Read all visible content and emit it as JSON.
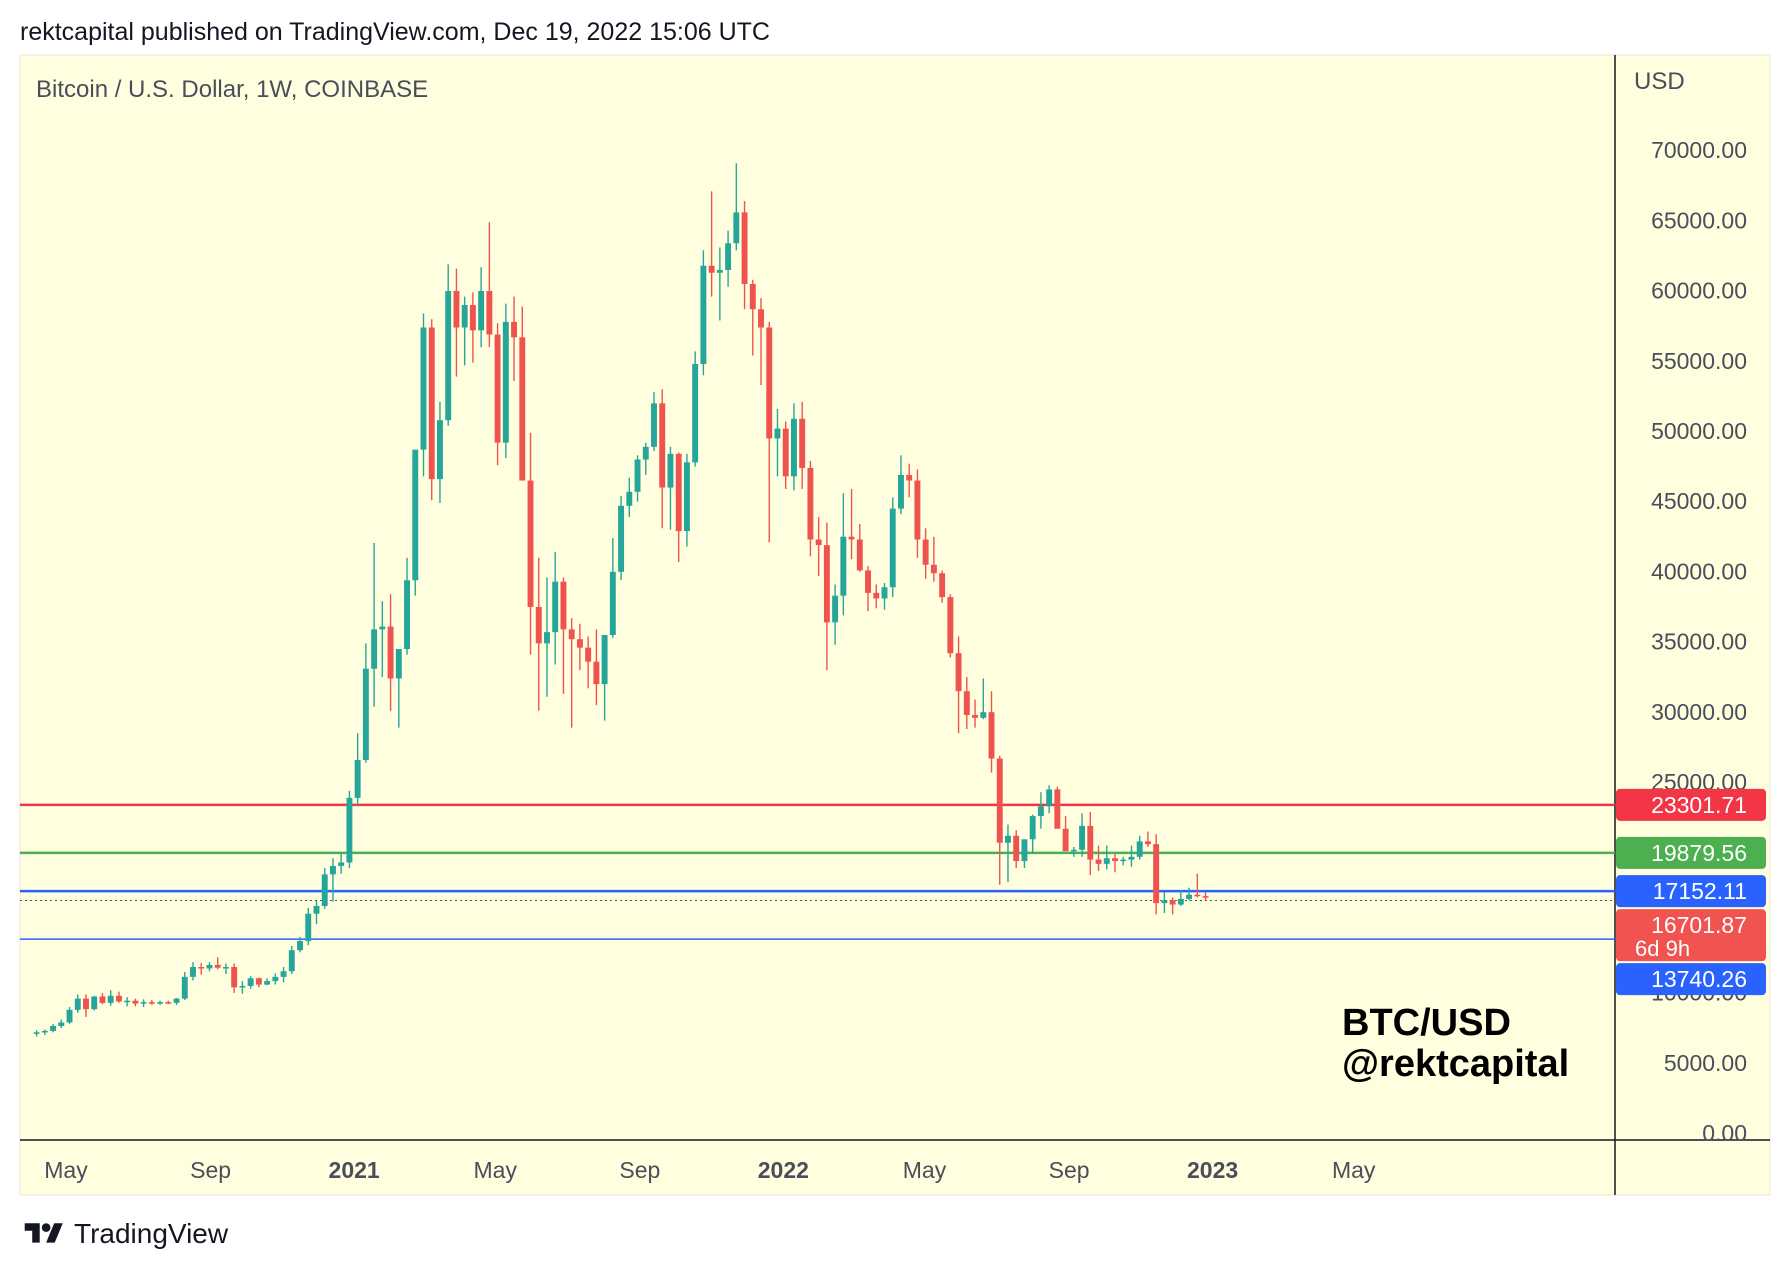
{
  "header": {
    "text": "rektcapital published on TradingView.com, Dec 19, 2022 15:06 UTC"
  },
  "footer": {
    "brand": "TradingView"
  },
  "colors": {
    "background": "#ffffe0",
    "up": "#26a69a",
    "down": "#ef5350",
    "resistance": "#f23645",
    "support_green": "#4caf50",
    "support_blue": "#2962ff",
    "current_price": "#f05350"
  },
  "chart_data": {
    "type": "candlestick",
    "title": "Bitcoin / U.S. Dollar, 1W, COINBASE",
    "watermark": [
      "BTC/USD",
      "@rektcapital"
    ],
    "y_axis": {
      "label": "USD",
      "ticks": [
        "70000.00",
        "65000.00",
        "60000.00",
        "55000.00",
        "50000.00",
        "45000.00",
        "40000.00",
        "35000.00",
        "30000.00",
        "25000.00",
        "10000.00",
        "5000.00",
        "0.00"
      ],
      "tick_values": [
        70000,
        65000,
        60000,
        55000,
        50000,
        45000,
        40000,
        35000,
        30000,
        25000,
        10000,
        5000,
        0
      ],
      "ylim": [
        0,
        80000
      ]
    },
    "x_axis": {
      "ticks": [
        {
          "label": "May",
          "bold": false
        },
        {
          "label": "Sep",
          "bold": false
        },
        {
          "label": "2021",
          "bold": true
        },
        {
          "label": "May",
          "bold": false
        },
        {
          "label": "Sep",
          "bold": false
        },
        {
          "label": "2022",
          "bold": true
        },
        {
          "label": "May",
          "bold": false
        },
        {
          "label": "Sep",
          "bold": false
        },
        {
          "label": "2023",
          "bold": true
        },
        {
          "label": "May",
          "bold": false
        }
      ],
      "tick_dates": [
        "2020-05-01",
        "2020-09-01",
        "2021-01-01",
        "2021-05-01",
        "2021-09-01",
        "2022-01-01",
        "2022-05-01",
        "2022-09-01",
        "2023-01-01",
        "2023-05-01"
      ]
    },
    "horizontal_levels": [
      {
        "label": "23301.71",
        "value": 23301.71,
        "color": "#f23645",
        "style": "solid",
        "text": "#ffffff"
      },
      {
        "label": "19879.56",
        "value": 19879.56,
        "color": "#4caf50",
        "style": "solid",
        "text": "#ffffff"
      },
      {
        "label": "17152.11",
        "value": 17152.11,
        "color": "#2962ff",
        "style": "solid",
        "text": "#ffffff"
      },
      {
        "label": "13740.26",
        "value": 13740.26,
        "color": "#2962ff",
        "style": "solid",
        "text": "#ffffff"
      }
    ],
    "current_price": {
      "label": "16701.87",
      "countdown": "6d 9h",
      "value": 16701.87
    },
    "series_start": "2020-04-06",
    "candles": [
      [
        7000,
        7250,
        6800,
        7100
      ],
      [
        7100,
        7300,
        6900,
        7200
      ],
      [
        7200,
        7700,
        7100,
        7550
      ],
      [
        7550,
        8000,
        7400,
        7800
      ],
      [
        7800,
        8900,
        7700,
        8700
      ],
      [
        8700,
        9800,
        8500,
        9500
      ],
      [
        9500,
        9800,
        8200,
        8750
      ],
      [
        8750,
        9700,
        8650,
        9650
      ],
      [
        9650,
        9900,
        9100,
        9200
      ],
      [
        9200,
        10100,
        9000,
        9700
      ],
      [
        9700,
        10000,
        9200,
        9300
      ],
      [
        9300,
        9600,
        8950,
        9350
      ],
      [
        9350,
        9500,
        8950,
        9150
      ],
      [
        9150,
        9450,
        8900,
        9250
      ],
      [
        9250,
        9400,
        9050,
        9150
      ],
      [
        9150,
        9350,
        9050,
        9250
      ],
      [
        9250,
        9350,
        9100,
        9200
      ],
      [
        9200,
        9550,
        9050,
        9500
      ],
      [
        9500,
        11400,
        9400,
        11050
      ],
      [
        11050,
        12100,
        10800,
        11750
      ],
      [
        11750,
        12050,
        11200,
        11650
      ],
      [
        11650,
        12100,
        11450,
        11900
      ],
      [
        11900,
        12450,
        11600,
        11700
      ],
      [
        11700,
        12000,
        11250,
        11750
      ],
      [
        11750,
        12000,
        9900,
        10300
      ],
      [
        10300,
        10750,
        9850,
        10400
      ],
      [
        10400,
        11100,
        10200,
        10950
      ],
      [
        10950,
        11000,
        10300,
        10500
      ],
      [
        10500,
        10950,
        10450,
        10750
      ],
      [
        10750,
        11300,
        10500,
        11050
      ],
      [
        11050,
        11750,
        10650,
        11450
      ],
      [
        11450,
        13250,
        11250,
        12950
      ],
      [
        12950,
        13900,
        12800,
        13600
      ],
      [
        13600,
        15950,
        13300,
        15550
      ],
      [
        15550,
        16450,
        14800,
        16100
      ],
      [
        16100,
        18800,
        15900,
        18350
      ],
      [
        18350,
        19500,
        16400,
        18950
      ],
      [
        18950,
        19900,
        18400,
        19200
      ],
      [
        19200,
        24300,
        18800,
        23800
      ],
      [
        23800,
        28400,
        23200,
        26500
      ],
      [
        26500,
        34800,
        26300,
        33000
      ],
      [
        33000,
        41950,
        30300,
        35800
      ],
      [
        35800,
        37800,
        32400,
        36000
      ],
      [
        36000,
        38300,
        30000,
        32300
      ],
      [
        32300,
        33800,
        28800,
        34400
      ],
      [
        34400,
        40900,
        34000,
        39300
      ],
      [
        39300,
        48200,
        38200,
        48600
      ],
      [
        48600,
        58300,
        46700,
        57300
      ],
      [
        57300,
        57900,
        45000,
        46500
      ],
      [
        46500,
        52000,
        44800,
        50700
      ],
      [
        50700,
        61800,
        50300,
        59900
      ],
      [
        59900,
        61500,
        53800,
        57300
      ],
      [
        57300,
        59500,
        54600,
        58900
      ],
      [
        58900,
        59800,
        54800,
        57100
      ],
      [
        57100,
        61600,
        55900,
        59900
      ],
      [
        59900,
        64800,
        55900,
        56800
      ],
      [
        56800,
        57600,
        47500,
        49100
      ],
      [
        49100,
        59000,
        48000,
        57700
      ],
      [
        57700,
        59500,
        53500,
        56600
      ],
      [
        56600,
        58800,
        46500,
        46400
      ],
      [
        46400,
        49800,
        34000,
        37400
      ],
      [
        37400,
        40900,
        30000,
        34800
      ],
      [
        34800,
        39500,
        31000,
        35600
      ],
      [
        35600,
        41300,
        33300,
        39200
      ],
      [
        39200,
        39500,
        31200,
        35800
      ],
      [
        35800,
        36600,
        28800,
        35100
      ],
      [
        35100,
        36200,
        32900,
        34500
      ],
      [
        34500,
        35300,
        31600,
        33500
      ],
      [
        33500,
        35800,
        30400,
        31900
      ],
      [
        31900,
        35300,
        29300,
        35400
      ],
      [
        35400,
        42300,
        35200,
        39900
      ],
      [
        39900,
        45300,
        39300,
        44600
      ],
      [
        44600,
        46600,
        43800,
        45600
      ],
      [
        45600,
        48200,
        44900,
        47900
      ],
      [
        47900,
        49100,
        46800,
        48800
      ],
      [
        48800,
        52700,
        48500,
        51900
      ],
      [
        51900,
        52900,
        43000,
        45900
      ],
      [
        45900,
        48800,
        42900,
        48300
      ],
      [
        48300,
        48400,
        40600,
        42800
      ],
      [
        42800,
        48300,
        41700,
        47700
      ],
      [
        47700,
        55600,
        47400,
        54700
      ],
      [
        54700,
        62800,
        53900,
        61700
      ],
      [
        61700,
        67000,
        59500,
        61200
      ],
      [
        61200,
        63000,
        57800,
        61400
      ],
      [
        61400,
        64200,
        60200,
        63300
      ],
      [
        63300,
        69000,
        62800,
        65500
      ],
      [
        65500,
        66300,
        58600,
        60400
      ],
      [
        60400,
        60700,
        55300,
        58600
      ],
      [
        58600,
        59400,
        53200,
        57300
      ],
      [
        57300,
        57700,
        42000,
        49400
      ],
      [
        49400,
        51500,
        46700,
        50100
      ],
      [
        50100,
        50600,
        45800,
        46700
      ],
      [
        46700,
        51900,
        45700,
        50800
      ],
      [
        50800,
        52000,
        45800,
        47300
      ],
      [
        47300,
        47800,
        41000,
        42200
      ],
      [
        42200,
        43800,
        39600,
        41800
      ],
      [
        41800,
        43400,
        32900,
        36300
      ],
      [
        36300,
        39000,
        34700,
        38200
      ],
      [
        38200,
        45500,
        36800,
        42400
      ],
      [
        42400,
        45800,
        40800,
        42200
      ],
      [
        42200,
        43300,
        39900,
        40000
      ],
      [
        40000,
        40300,
        37100,
        38400
      ],
      [
        38400,
        39000,
        37300,
        38000
      ],
      [
        38000,
        39100,
        37200,
        38800
      ],
      [
        38800,
        45200,
        38100,
        44400
      ],
      [
        44400,
        48200,
        44000,
        46800
      ],
      [
        46800,
        47600,
        45200,
        46400
      ],
      [
        46400,
        47200,
        40900,
        42200
      ],
      [
        42200,
        43000,
        39400,
        40400
      ],
      [
        40400,
        42400,
        39200,
        39800
      ],
      [
        39800,
        40000,
        37700,
        38100
      ],
      [
        38100,
        38300,
        33800,
        34100
      ],
      [
        34100,
        35300,
        28400,
        31400
      ],
      [
        31400,
        32400,
        28700,
        29700
      ],
      [
        29700,
        30800,
        28800,
        29500
      ],
      [
        29500,
        32300,
        29400,
        29900
      ],
      [
        29900,
        31400,
        25600,
        26600
      ],
      [
        26600,
        26800,
        17600,
        20600
      ],
      [
        20600,
        21900,
        17800,
        21100
      ],
      [
        21100,
        21500,
        18800,
        19300
      ],
      [
        19300,
        20400,
        18800,
        20850
      ],
      [
        20850,
        22600,
        19800,
        22500
      ],
      [
        22500,
        24200,
        21600,
        23200
      ],
      [
        23200,
        24700,
        22700,
        24400
      ],
      [
        24400,
        24600,
        21600,
        21600
      ],
      [
        21600,
        22500,
        20100,
        20000
      ],
      [
        20000,
        20300,
        19600,
        20100
      ],
      [
        20100,
        22700,
        19600,
        21800
      ],
      [
        21800,
        22800,
        18300,
        19400
      ],
      [
        19400,
        20400,
        18600,
        19100
      ],
      [
        19100,
        20400,
        18700,
        19500
      ],
      [
        19500,
        19800,
        18500,
        19300
      ],
      [
        19300,
        19600,
        19000,
        19400
      ],
      [
        19400,
        20400,
        18900,
        19600
      ],
      [
        19600,
        21100,
        19400,
        20700
      ],
      [
        20700,
        21400,
        20300,
        20500
      ],
      [
        20500,
        21200,
        15500,
        16300
      ],
      [
        16300,
        17100,
        15600,
        16500
      ],
      [
        16500,
        16700,
        15500,
        16200
      ],
      [
        16200,
        17200,
        16100,
        16600
      ],
      [
        16600,
        17400,
        16500,
        16900
      ],
      [
        16900,
        18400,
        16700,
        16800
      ],
      [
        16800,
        17100,
        16500,
        16700
      ]
    ]
  }
}
